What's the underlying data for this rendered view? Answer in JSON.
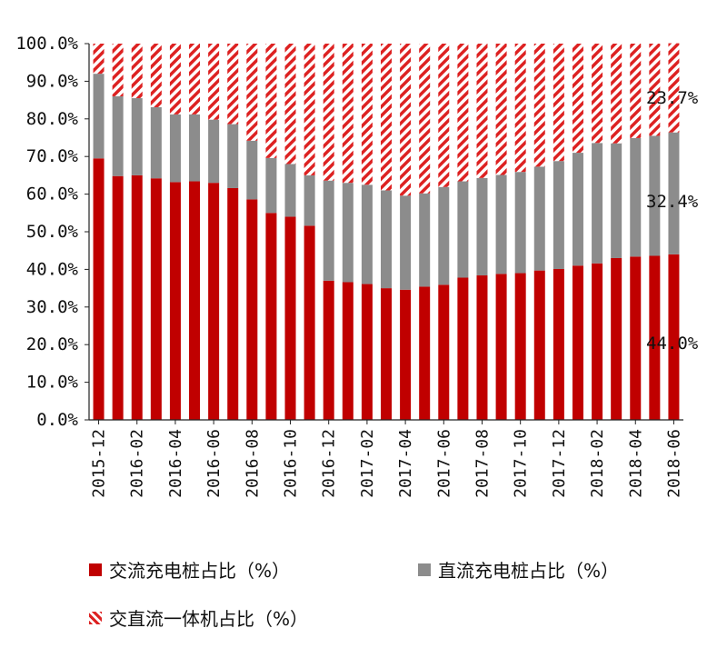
{
  "chart_data": {
    "type": "bar",
    "stacked": true,
    "categories": [
      "2015-12",
      "2016-01",
      "2016-02",
      "2016-03",
      "2016-04",
      "2016-05",
      "2016-06",
      "2016-07",
      "2016-08",
      "2016-09",
      "2016-10",
      "2016-11",
      "2016-12",
      "2017-01",
      "2017-02",
      "2017-03",
      "2017-04",
      "2017-05",
      "2017-06",
      "2017-07",
      "2017-08",
      "2017-09",
      "2017-10",
      "2017-11",
      "2017-12",
      "2018-01",
      "2018-02",
      "2018-03",
      "2018-04",
      "2018-05",
      "2018-06"
    ],
    "x_tick_labels": [
      "2015-12",
      "2016-02",
      "2016-04",
      "2016-06",
      "2016-08",
      "2016-10",
      "2016-12",
      "2017-02",
      "2017-04",
      "2017-06",
      "2017-08",
      "2017-10",
      "2017-12",
      "2018-02",
      "2018-04",
      "2018-06"
    ],
    "y_tick_labels": [
      "100.0%",
      "90.0%",
      "80.0%",
      "70.0%",
      "60.0%",
      "50.0%",
      "40.0%",
      "30.0%",
      "20.0%",
      "10.0%",
      "0.0%"
    ],
    "ylim": [
      0,
      100
    ],
    "series": [
      {
        "name": "交流充电桩占比（%）",
        "color": "#c00000",
        "values": [
          69.5,
          64.8,
          65.0,
          64.2,
          63.2,
          63.4,
          63.0,
          61.6,
          58.6,
          55.0,
          54.0,
          51.6,
          37.0,
          36.6,
          36.1,
          35.0,
          34.6,
          35.4,
          35.9,
          37.8,
          38.4,
          38.8,
          39.0,
          39.7,
          40.1,
          41.0,
          41.6,
          43.0,
          43.4,
          43.6,
          44.0
        ]
      },
      {
        "name": "直流充电桩占比（%）",
        "color": "#8c8c8c",
        "values": [
          22.5,
          21.2,
          20.5,
          18.9,
          18.0,
          17.8,
          16.8,
          17.0,
          15.6,
          14.6,
          14.0,
          13.4,
          26.6,
          26.4,
          26.4,
          26.0,
          25.0,
          24.8,
          26.0,
          25.6,
          25.9,
          26.3,
          26.9,
          27.6,
          28.7,
          30.0,
          32.0,
          30.5,
          31.5,
          31.9,
          32.4
        ]
      },
      {
        "name": "交直流一体机占比（%）",
        "color": "#dd2222",
        "pattern": "hatched",
        "values": [
          8.0,
          14.0,
          14.5,
          16.9,
          18.8,
          18.8,
          20.2,
          21.4,
          25.8,
          30.4,
          32.0,
          35.0,
          36.4,
          37.0,
          37.5,
          39.0,
          40.4,
          39.8,
          38.1,
          36.6,
          35.7,
          34.9,
          34.1,
          32.7,
          31.2,
          29.0,
          26.4,
          26.5,
          25.1,
          24.5,
          23.7
        ]
      }
    ],
    "annotations": [
      "23.7%",
      "32.4%",
      "44.0%"
    ]
  }
}
